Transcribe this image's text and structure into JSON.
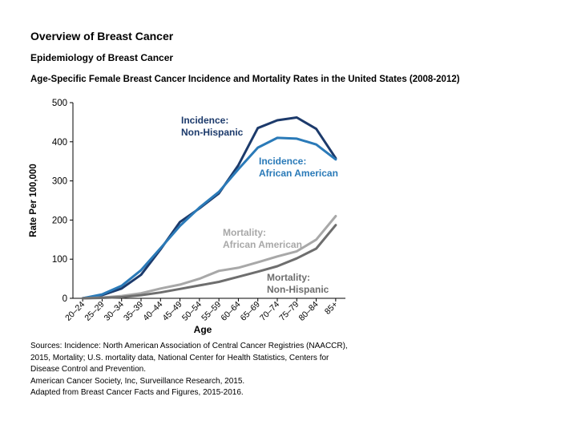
{
  "header": {
    "title": "Overview of Breast Cancer",
    "subtitle": "Epidemiology of Breast Cancer",
    "chart_title": "Age-Specific Female Breast Cancer Incidence and Mortality Rates in the United States (2008-2012)"
  },
  "sources": [
    "Sources: Incidence: North American Association of Central Cancer Registries (NAACCR),",
    "2015, Mortality; U.S. mortality data, National Center for Health Statistics, Centers for",
    "Disease Control and Prevention.",
    "American Cancer Society, Inc, Surveillance Research, 2015.",
    "Adapted from Breast Cancer Facts and Figures, 2015-2016."
  ],
  "chart_data": {
    "type": "line",
    "title": "Age-Specific Female Breast Cancer Incidence and Mortality Rates in the United States (2008-2012)",
    "xlabel": "Age",
    "ylabel": "Rate Per 100,000",
    "ylim": [
      0,
      500
    ],
    "yticks": [
      0,
      100,
      200,
      300,
      400,
      500
    ],
    "grid": false,
    "categories": [
      "20–24",
      "25–29",
      "30–34",
      "35–39",
      "40–44",
      "45–49",
      "50–54",
      "55–59",
      "60–64",
      "65–69",
      "70–74",
      "75–79",
      "80–84",
      "85+"
    ],
    "series": [
      {
        "name": "Incidence: Non-Hispanic",
        "label_lines": [
          "Incidence:",
          "Non-Hispanic"
        ],
        "color": "#1c3a6b",
        "values": [
          0,
          8,
          25,
          60,
          125,
          195,
          230,
          268,
          340,
          435,
          455,
          462,
          433,
          358
        ]
      },
      {
        "name": "Incidence: African American",
        "label_lines": [
          "Incidence:",
          "African American"
        ],
        "color": "#2a7ab8",
        "values": [
          0,
          10,
          32,
          72,
          128,
          185,
          232,
          272,
          330,
          385,
          410,
          408,
          393,
          355
        ]
      },
      {
        "name": "Mortality: African American",
        "label_lines": [
          "Mortality:",
          "African American"
        ],
        "color": "#a8a8a8",
        "values": [
          0,
          2,
          6,
          13,
          25,
          35,
          50,
          70,
          78,
          92,
          107,
          120,
          150,
          210
        ]
      },
      {
        "name": "Mortality: Non-Hispanic",
        "label_lines": [
          "Mortality:",
          "Non-Hispanic"
        ],
        "color": "#6e6e6e",
        "values": [
          0,
          1,
          3,
          8,
          15,
          24,
          33,
          42,
          55,
          68,
          82,
          102,
          127,
          187
        ]
      }
    ]
  }
}
